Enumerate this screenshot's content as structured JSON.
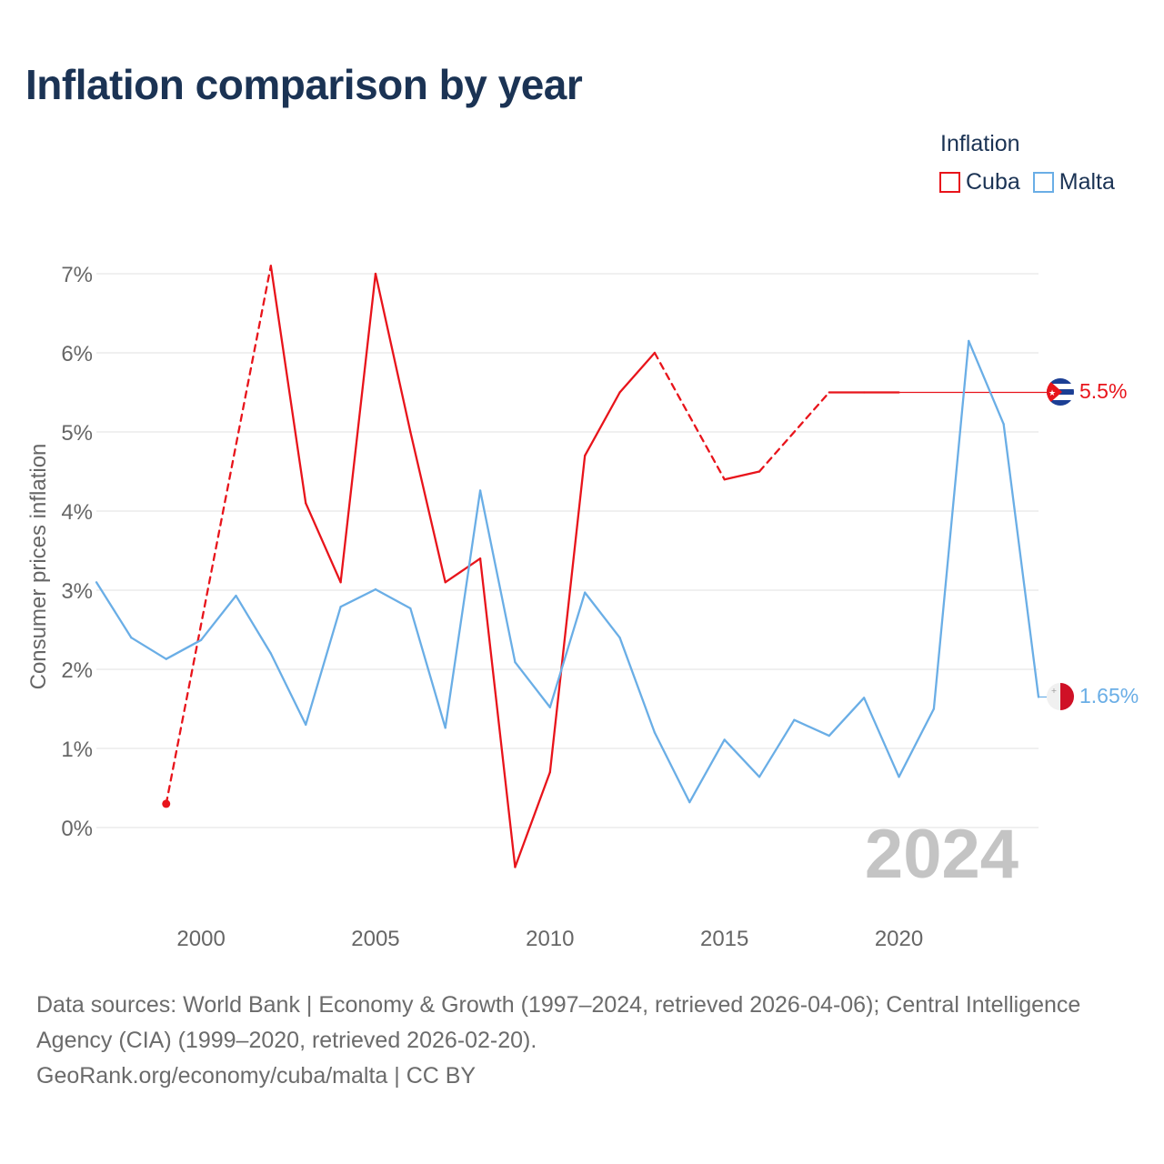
{
  "title": "Inflation comparison by year",
  "legend": {
    "title": "Inflation",
    "items": [
      {
        "label": "Cuba",
        "color": "#e8141b"
      },
      {
        "label": "Malta",
        "color": "#6aaee6"
      }
    ]
  },
  "footer": {
    "sources": "Data sources: World Bank | Economy & Growth (1997–2024, retrieved 2026-04-06); Central Intelligence Agency (CIA) (1999–2020, retrieved 2026-02-20).",
    "credit": "GeoRank.org/economy/cuba/malta | CC BY"
  },
  "chart_data": {
    "type": "line",
    "title": "Inflation comparison by year",
    "ylabel": "Consumer prices inflation",
    "xlabel": "",
    "xlim": [
      1997,
      2024
    ],
    "ylim": [
      -1,
      7.2
    ],
    "x_ticks": [
      2000,
      2005,
      2010,
      2015,
      2020
    ],
    "y_ticks": [
      {
        "value": 0,
        "label": "0%"
      },
      {
        "value": 1,
        "label": "1%"
      },
      {
        "value": 2,
        "label": "2%"
      },
      {
        "value": 3,
        "label": "3%"
      },
      {
        "value": 4,
        "label": "4%"
      },
      {
        "value": 5,
        "label": "5%"
      },
      {
        "value": 6,
        "label": "6%"
      },
      {
        "value": 7,
        "label": "7%"
      }
    ],
    "year_watermark": "2024",
    "series": [
      {
        "name": "Cuba",
        "color": "#e8141b",
        "end_label": "5.5%",
        "end_value": 5.5,
        "points": [
          {
            "x": 1999,
            "y": 0.3
          },
          {
            "x": 2002,
            "y": 7.1
          },
          {
            "x": 2003,
            "y": 4.1
          },
          {
            "x": 2004,
            "y": 3.1
          },
          {
            "x": 2005,
            "y": 7.0
          },
          {
            "x": 2006,
            "y": 5.0
          },
          {
            "x": 2007,
            "y": 3.1
          },
          {
            "x": 2008,
            "y": 3.4
          },
          {
            "x": 2009,
            "y": -0.5
          },
          {
            "x": 2010,
            "y": 0.7
          },
          {
            "x": 2011,
            "y": 4.7
          },
          {
            "x": 2012,
            "y": 5.5
          },
          {
            "x": 2013,
            "y": 6.0
          },
          {
            "x": 2015,
            "y": 4.4
          },
          {
            "x": 2016,
            "y": 4.5
          },
          {
            "x": 2018,
            "y": 5.5
          },
          {
            "x": 2019,
            "y": 5.5
          },
          {
            "x": 2020,
            "y": 5.5
          }
        ]
      },
      {
        "name": "Malta",
        "color": "#6aaee6",
        "end_label": "1.65%",
        "end_value": 1.65,
        "points": [
          {
            "x": 1997,
            "y": 3.1
          },
          {
            "x": 1998,
            "y": 2.4
          },
          {
            "x": 1999,
            "y": 2.13
          },
          {
            "x": 2000,
            "y": 2.37
          },
          {
            "x": 2001,
            "y": 2.93
          },
          {
            "x": 2002,
            "y": 2.2
          },
          {
            "x": 2003,
            "y": 1.3
          },
          {
            "x": 2004,
            "y": 2.79
          },
          {
            "x": 2005,
            "y": 3.01
          },
          {
            "x": 2006,
            "y": 2.77
          },
          {
            "x": 2007,
            "y": 1.26
          },
          {
            "x": 2008,
            "y": 4.26
          },
          {
            "x": 2009,
            "y": 2.09
          },
          {
            "x": 2010,
            "y": 1.52
          },
          {
            "x": 2011,
            "y": 2.97
          },
          {
            "x": 2012,
            "y": 2.4
          },
          {
            "x": 2013,
            "y": 1.2
          },
          {
            "x": 2014,
            "y": 0.32
          },
          {
            "x": 2015,
            "y": 1.11
          },
          {
            "x": 2016,
            "y": 0.64
          },
          {
            "x": 2017,
            "y": 1.36
          },
          {
            "x": 2018,
            "y": 1.16
          },
          {
            "x": 2019,
            "y": 1.64
          },
          {
            "x": 2020,
            "y": 0.64
          },
          {
            "x": 2021,
            "y": 1.5
          },
          {
            "x": 2022,
            "y": 6.15
          },
          {
            "x": 2023,
            "y": 5.1
          },
          {
            "x": 2024,
            "y": 1.65
          }
        ]
      }
    ]
  }
}
